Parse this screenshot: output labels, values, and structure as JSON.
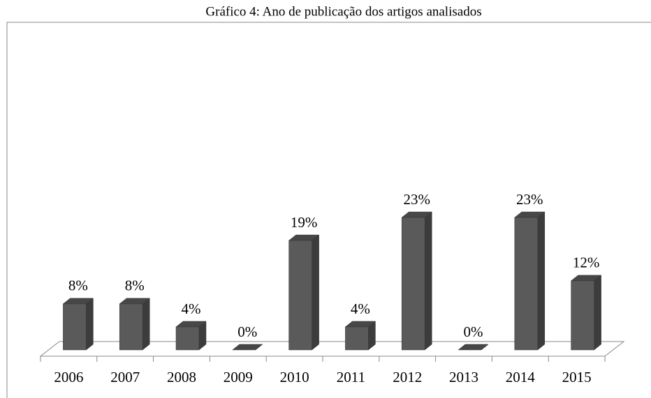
{
  "chart_data": {
    "type": "bar3d",
    "title": "Gráfico 4: Ano de publicação dos artigos analisados",
    "categories": [
      "2006",
      "2007",
      "2008",
      "2009",
      "2010",
      "2011",
      "2012",
      "2013",
      "2014",
      "2015"
    ],
    "values": [
      8,
      8,
      4,
      0,
      19,
      4,
      23,
      0,
      23,
      12
    ],
    "value_labels": [
      "8%",
      "8%",
      "4%",
      "0%",
      "19%",
      "4%",
      "23%",
      "0%",
      "23%",
      "12%"
    ],
    "color": "#5a5a5a"
  }
}
